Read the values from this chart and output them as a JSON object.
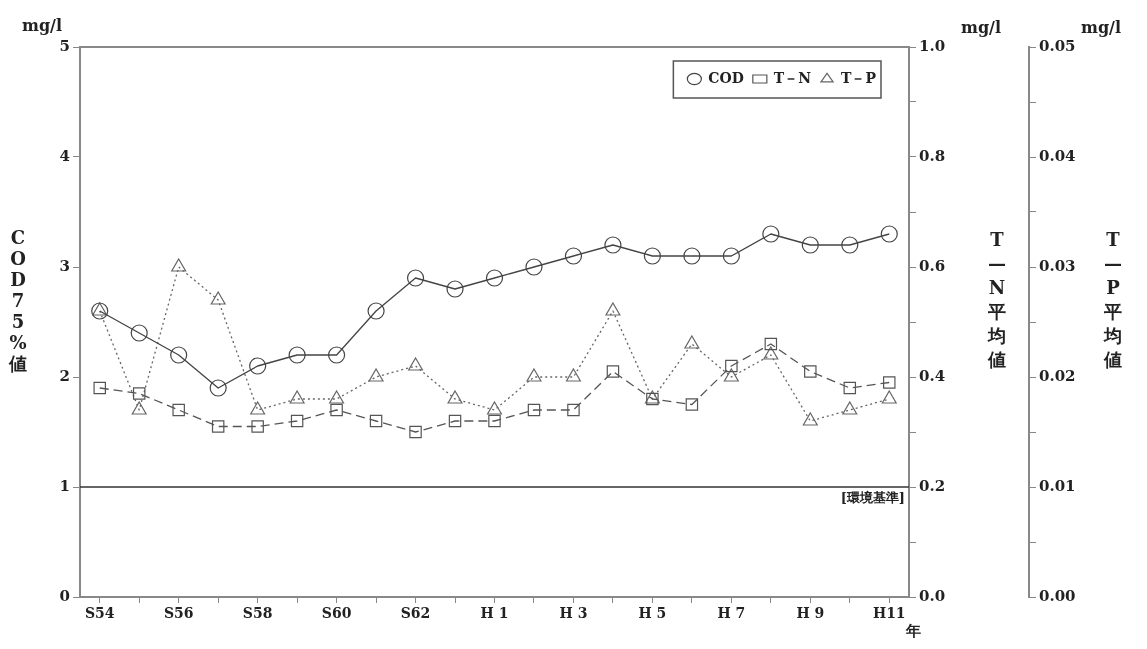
{
  "chart_data": {
    "type": "line",
    "categories": [
      "S54",
      null,
      "S56",
      null,
      "S58",
      null,
      "S60",
      null,
      "S62",
      null,
      "H 1",
      null,
      "H 3",
      null,
      "H 5",
      null,
      "H 7",
      null,
      "H 9",
      null,
      "H11"
    ],
    "series": [
      {
        "name": "COD",
        "color": "#444444",
        "marker": "circle",
        "line_style": "solid",
        "axis": "y",
        "values": [
          2.6,
          2.4,
          2.2,
          1.9,
          2.1,
          2.2,
          2.2,
          2.6,
          2.9,
          2.8,
          2.9,
          3.0,
          3.1,
          3.2,
          3.1,
          3.1,
          3.1,
          3.3,
          3.2,
          3.2,
          3.3
        ]
      },
      {
        "name": "T－N",
        "color": "#555555",
        "marker": "square",
        "line_style": "dashed",
        "axis": "y2",
        "values": [
          0.38,
          0.37,
          0.34,
          0.31,
          0.31,
          0.32,
          0.34,
          0.32,
          0.3,
          0.32,
          0.32,
          0.34,
          0.34,
          0.41,
          0.36,
          0.35,
          0.42,
          0.46,
          0.41,
          0.38,
          0.39
        ]
      },
      {
        "name": "T－P",
        "color": "#666666",
        "marker": "triangle",
        "line_style": "dotted",
        "axis": "y3",
        "values": [
          0.026,
          0.017,
          0.03,
          0.027,
          0.017,
          0.018,
          0.018,
          0.02,
          0.021,
          0.018,
          0.017,
          0.02,
          0.02,
          0.026,
          0.018,
          0.023,
          0.02,
          0.022,
          0.016,
          0.017,
          0.018
        ]
      }
    ],
    "xlabel": "年",
    "ylabel": "COD75%値",
    "y2label": "T—N平均値",
    "y3label": "T—P平均値",
    "ylim": [
      0,
      5
    ],
    "yticks": [
      0,
      1,
      2,
      3,
      4,
      5
    ],
    "y2lim": [
      0,
      1
    ],
    "y2ticks": [
      {
        "value": 0,
        "label": "0.0"
      },
      {
        "value": 0.1,
        "label": null
      },
      {
        "value": 0.2,
        "label": "0.2"
      },
      {
        "value": 0.3,
        "label": null
      },
      {
        "value": 0.4,
        "label": "0.4"
      },
      {
        "value": 0.5,
        "label": null
      },
      {
        "value": 0.6,
        "label": "0.6"
      },
      {
        "value": 0.7,
        "label": null
      },
      {
        "value": 0.8,
        "label": "0.8"
      },
      {
        "value": 0.9,
        "label": null
      },
      {
        "value": 1,
        "label": "1.0"
      }
    ],
    "y3lim": [
      0,
      0.05
    ],
    "y3ticks": [
      {
        "value": 0,
        "label": "0.00"
      },
      {
        "value": 0.005,
        "label": null
      },
      {
        "value": 0.01,
        "label": "0.01"
      },
      {
        "value": 0.015,
        "label": null
      },
      {
        "value": 0.02,
        "label": "0.02"
      },
      {
        "value": 0.025,
        "label": null
      },
      {
        "value": 0.03,
        "label": "0.03"
      },
      {
        "value": 0.035,
        "label": null
      },
      {
        "value": 0.04,
        "label": "0.04"
      },
      {
        "value": 0.045,
        "label": null
      },
      {
        "value": 0.05,
        "label": "0.05"
      }
    ],
    "ref_lines": [
      {
        "axis": "y",
        "value": 1,
        "label": "[環境基準]",
        "color": "#333333"
      }
    ],
    "annotations": [
      "mg/l",
      "mg/l",
      "mg/l"
    ],
    "legend": "top right",
    "grid": false
  }
}
